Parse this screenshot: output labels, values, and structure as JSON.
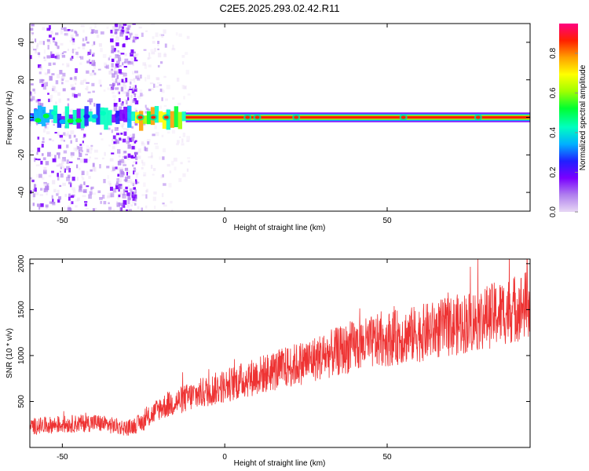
{
  "title": "C2E5.2025.293.02.42.R11",
  "colors": {
    "frame": "#000000",
    "snr_line": "#ee3333",
    "band_core": "#ee2222"
  },
  "chart_data": [
    {
      "type": "heatmap",
      "name": "spectrogram",
      "xlabel": "Height of straight line (km)",
      "ylabel": "Frequency (Hz)",
      "xlim": [
        -60,
        94
      ],
      "ylim": [
        -50,
        50
      ],
      "x_ticks": [
        -50,
        0,
        50
      ],
      "y_ticks": [
        -40,
        -20,
        0,
        20,
        40
      ],
      "grid": false,
      "band_center_hz": 0,
      "colorbar": {
        "label": "Normalized spectral amplitude",
        "range": [
          0,
          0.95
        ],
        "ticks": [
          0.0,
          0.2,
          0.4,
          0.6,
          0.8
        ],
        "tick_labels": [
          "0.0",
          "0.2",
          "0.4",
          "0.6",
          "0.8"
        ],
        "colormap": [
          "#e8d8f4",
          "#b080ee",
          "#7a00ff",
          "#2020ff",
          "#00b0ff",
          "#00ffc0",
          "#00ff30",
          "#a0ff00",
          "#ffff00",
          "#ffa000",
          "#ff2000",
          "#ff0080"
        ]
      }
    },
    {
      "type": "line",
      "name": "snr",
      "xlabel": "Height of straight line (km)",
      "ylabel": "SNR (10 * v/v)",
      "xlim": [
        -60,
        94
      ],
      "ylim": [
        0,
        2050
      ],
      "x_ticks": [
        -50,
        0,
        50
      ],
      "y_ticks": [
        500,
        1000,
        1500,
        2000
      ],
      "grid": false,
      "series": [
        {
          "name": "SNR",
          "x": [
            -60,
            -50,
            -40,
            -35,
            -30,
            -25,
            -20,
            -10,
            0,
            10,
            20,
            30,
            40,
            50,
            60,
            70,
            80,
            90,
            94
          ],
          "values": [
            230,
            250,
            270,
            240,
            210,
            280,
            430,
            560,
            670,
            780,
            880,
            990,
            1100,
            1180,
            1240,
            1320,
            1410,
            1520,
            1560
          ]
        }
      ]
    }
  ]
}
